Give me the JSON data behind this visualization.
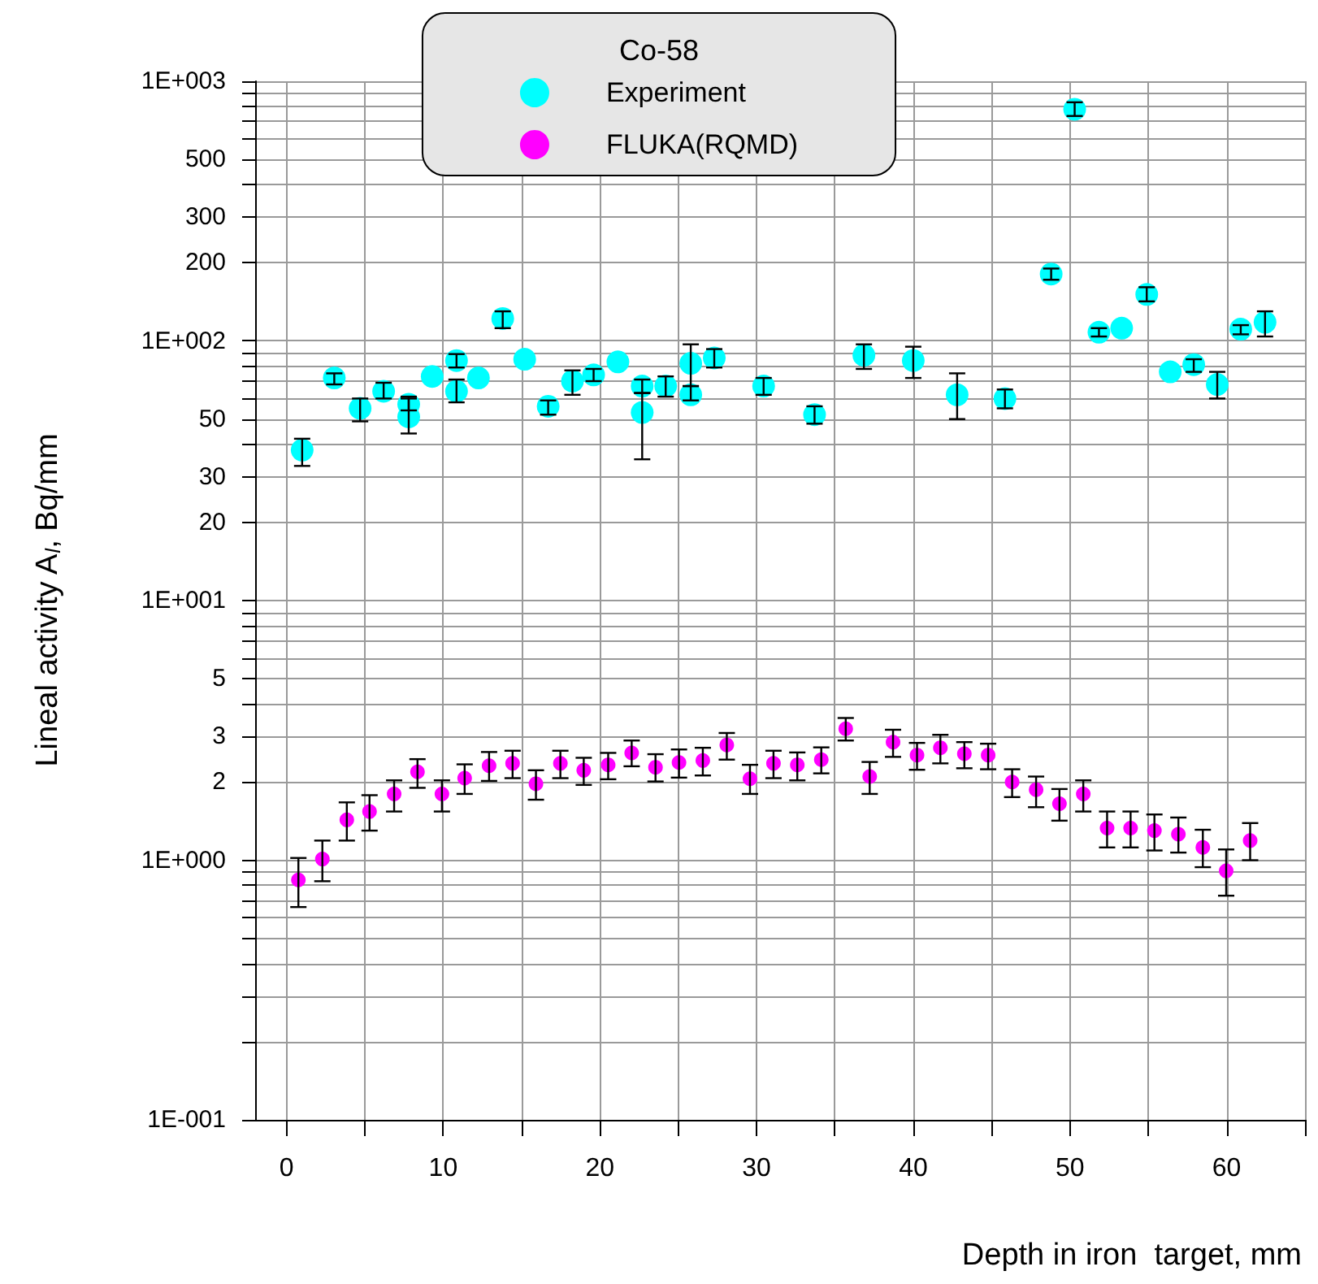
{
  "chart_data": {
    "type": "scatter",
    "xlabel": "Depth in iron  target, mm",
    "ylabel": "Lineal activity A$_{l}$, Bq/mm",
    "legend_title": "Co-58",
    "legend": "top",
    "grid": true,
    "marker": "circle",
    "log": "y",
    "xlim": [
      -2,
      65
    ],
    "xticks": [
      0,
      {
        "value": 5,
        "label": null
      },
      10,
      {
        "value": 15,
        "label": null
      },
      20,
      {
        "value": 25,
        "label": null
      },
      30,
      {
        "value": 35,
        "label": null
      },
      40,
      {
        "value": 45,
        "label": null
      },
      50,
      {
        "value": 55,
        "label": null
      },
      60,
      {
        "value": 65,
        "label": null
      }
    ],
    "ylim": [
      0.1,
      1000
    ],
    "yticks": [
      {
        "value": 0.1,
        "label": "1E-001"
      },
      {
        "value": 0.2,
        "label": null
      },
      {
        "value": 0.3,
        "label": null
      },
      {
        "value": 0.4,
        "label": null
      },
      {
        "value": 0.5,
        "label": null
      },
      {
        "value": 0.6,
        "label": null
      },
      {
        "value": 0.7,
        "label": null
      },
      {
        "value": 0.8,
        "label": null
      },
      {
        "value": 0.9,
        "label": null
      },
      {
        "value": 1,
        "label": "1E+000"
      },
      2,
      3,
      {
        "value": 4,
        "label": null
      },
      5,
      {
        "value": 6,
        "label": null
      },
      {
        "value": 7,
        "label": null
      },
      {
        "value": 8,
        "label": null
      },
      {
        "value": 9,
        "label": null
      },
      {
        "value": 10,
        "label": "1E+001"
      },
      20,
      30,
      {
        "value": 40,
        "label": null
      },
      50,
      {
        "value": 60,
        "label": null
      },
      {
        "value": 70,
        "label": null
      },
      {
        "value": 80,
        "label": null
      },
      {
        "value": 90,
        "label": null
      },
      {
        "value": 100,
        "label": "1E+002"
      },
      200,
      300,
      {
        "value": 400,
        "label": null
      },
      500,
      {
        "value": 600,
        "label": null
      },
      {
        "value": 700,
        "label": null
      },
      {
        "value": 800,
        "label": null
      },
      {
        "value": 900,
        "label": null
      },
      {
        "value": 1000,
        "label": "1E+003"
      }
    ],
    "series": [
      {
        "name": "Experiment",
        "color": "#00ffff",
        "x": [
          1.0,
          3.05,
          4.7,
          6.2,
          7.8,
          7.8,
          9.3,
          10.85,
          10.85,
          12.25,
          13.8,
          15.2,
          16.7,
          18.25,
          19.6,
          21.15,
          22.7,
          22.7,
          24.2,
          25.8,
          25.8,
          27.3,
          30.45,
          33.7,
          36.85,
          40.0,
          42.8,
          45.85,
          48.8,
          50.3,
          51.85,
          53.3,
          54.9,
          56.4,
          57.9,
          59.4,
          60.9,
          62.45
        ],
        "values": [
          38,
          72,
          55,
          64,
          57,
          51,
          73,
          84,
          64,
          72,
          122,
          85,
          56,
          70,
          74,
          83,
          67,
          53,
          67,
          82,
          62,
          86,
          67,
          52,
          88,
          84,
          62,
          60,
          181,
          780,
          108,
          112,
          151,
          76,
          81,
          68,
          111,
          118
        ],
        "errors": [
          [
            33,
            42
          ],
          [
            68,
            75
          ],
          [
            49,
            60
          ],
          [
            60,
            69
          ],
          [
            54,
            60
          ],
          [
            44,
            61
          ],
          null,
          [
            79,
            89
          ],
          [
            58,
            71
          ],
          null,
          [
            112,
            130
          ],
          null,
          [
            52,
            59
          ],
          [
            62,
            77
          ],
          [
            70,
            78
          ],
          null,
          [
            63,
            71
          ],
          [
            35,
            63
          ],
          [
            61,
            73
          ],
          [
            67,
            97
          ],
          [
            59,
            67
          ],
          [
            79,
            93
          ],
          [
            62,
            72
          ],
          [
            48,
            56
          ],
          [
            78,
            97
          ],
          [
            72,
            95
          ],
          [
            50,
            75
          ],
          [
            55,
            65
          ],
          [
            172,
            190
          ],
          [
            735,
            830
          ],
          [
            104,
            112
          ],
          null,
          [
            142,
            161
          ],
          null,
          [
            76,
            85
          ],
          [
            60,
            76
          ],
          [
            106,
            115
          ],
          [
            104,
            130
          ]
        ]
      },
      {
        "name": "FLUKA(RQMD)",
        "color": "#ff00ff",
        "x": [
          0.76,
          2.29,
          3.85,
          5.3,
          6.87,
          8.36,
          9.92,
          11.37,
          12.93,
          14.43,
          15.92,
          17.48,
          18.97,
          20.53,
          22.03,
          23.55,
          25.05,
          26.57,
          28.1,
          29.58,
          31.08,
          32.6,
          34.13,
          35.69,
          37.22,
          38.71,
          40.24,
          41.73,
          43.26,
          44.78,
          46.31,
          47.84,
          49.33,
          50.85,
          52.37,
          53.87,
          55.39,
          56.92,
          58.48,
          59.97,
          61.5
        ],
        "values": [
          0.84,
          1.01,
          1.43,
          1.54,
          1.8,
          2.19,
          1.8,
          2.07,
          2.31,
          2.36,
          1.97,
          2.36,
          2.22,
          2.33,
          2.59,
          2.28,
          2.38,
          2.42,
          2.78,
          2.06,
          2.36,
          2.33,
          2.44,
          3.21,
          2.1,
          2.85,
          2.54,
          2.71,
          2.57,
          2.54,
          2.0,
          1.87,
          1.65,
          1.8,
          1.33,
          1.33,
          1.3,
          1.26,
          1.12,
          0.91,
          1.19
        ],
        "errors": [
          [
            0.66,
            1.02
          ],
          [
            0.83,
            1.19
          ],
          [
            1.19,
            1.67
          ],
          [
            1.3,
            1.78
          ],
          [
            1.54,
            2.03
          ],
          [
            1.9,
            2.45
          ],
          [
            1.54,
            2.03
          ],
          [
            1.8,
            2.34
          ],
          [
            2.02,
            2.61
          ],
          [
            2.07,
            2.64
          ],
          [
            1.71,
            2.22
          ],
          [
            2.07,
            2.64
          ],
          [
            1.95,
            2.48
          ],
          [
            2.05,
            2.59
          ],
          [
            2.3,
            2.89
          ],
          [
            2.01,
            2.56
          ],
          [
            2.08,
            2.67
          ],
          [
            2.12,
            2.71
          ],
          [
            2.44,
            3.09
          ],
          [
            1.8,
            2.33
          ],
          [
            2.07,
            2.64
          ],
          [
            2.03,
            2.6
          ],
          [
            2.16,
            2.72
          ],
          [
            2.89,
            3.53
          ],
          [
            1.8,
            2.39
          ],
          [
            2.5,
            3.18
          ],
          [
            2.23,
            2.83
          ],
          [
            2.36,
            3.04
          ],
          [
            2.26,
            2.85
          ],
          [
            2.24,
            2.81
          ],
          [
            1.75,
            2.24
          ],
          [
            1.6,
            2.1
          ],
          [
            1.42,
            1.88
          ],
          [
            1.54,
            2.03
          ],
          [
            1.12,
            1.54
          ],
          [
            1.12,
            1.54
          ],
          [
            1.09,
            1.5
          ],
          [
            1.07,
            1.46
          ],
          [
            0.94,
            1.31
          ],
          [
            0.73,
            1.1
          ],
          [
            1.0,
            1.39
          ]
        ]
      }
    ]
  }
}
